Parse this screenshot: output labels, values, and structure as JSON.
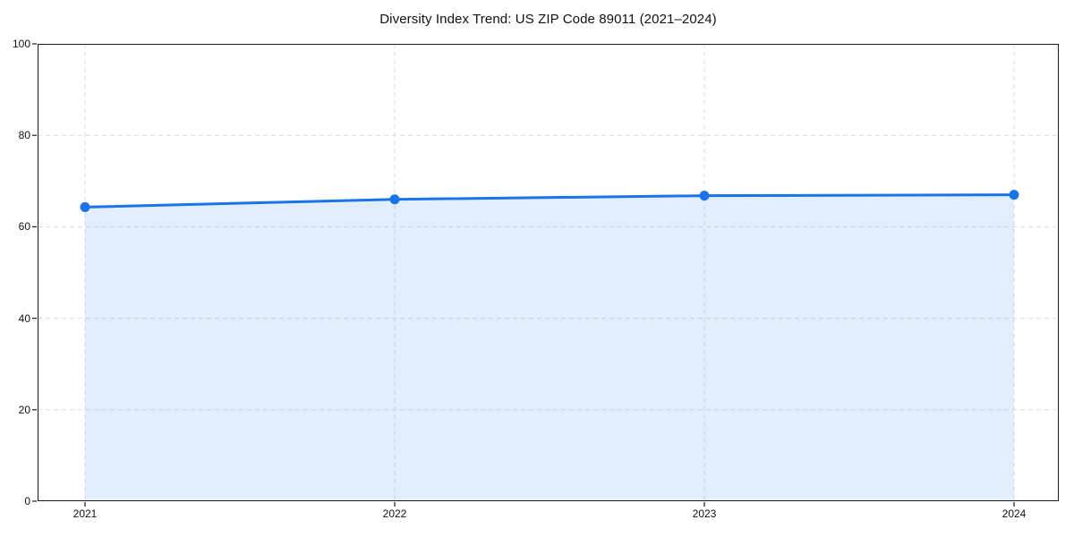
{
  "chart_data": {
    "type": "area",
    "title": "Diversity Index Trend: US ZIP Code 89011 (2021–2024)",
    "categories": [
      "2021",
      "2022",
      "2023",
      "2024"
    ],
    "series": [
      {
        "name": "Diversity Index",
        "values": [
          64.3,
          66.0,
          66.8,
          67.0
        ]
      }
    ],
    "xlabel": "",
    "ylabel": "",
    "ylim": [
      0,
      100
    ],
    "yticks": [
      0,
      20,
      40,
      60,
      80,
      100
    ],
    "grid": true,
    "grid_style": "dashed",
    "legend": "none",
    "marker": "circle",
    "colors": {
      "line": "#1A73E8",
      "fill": "#1A73E8",
      "fill_opacity": 0.12,
      "grid": "#DCDCDC",
      "spine": "#1A1A1A",
      "text": "#111111",
      "background": "#FFFFFF"
    }
  }
}
